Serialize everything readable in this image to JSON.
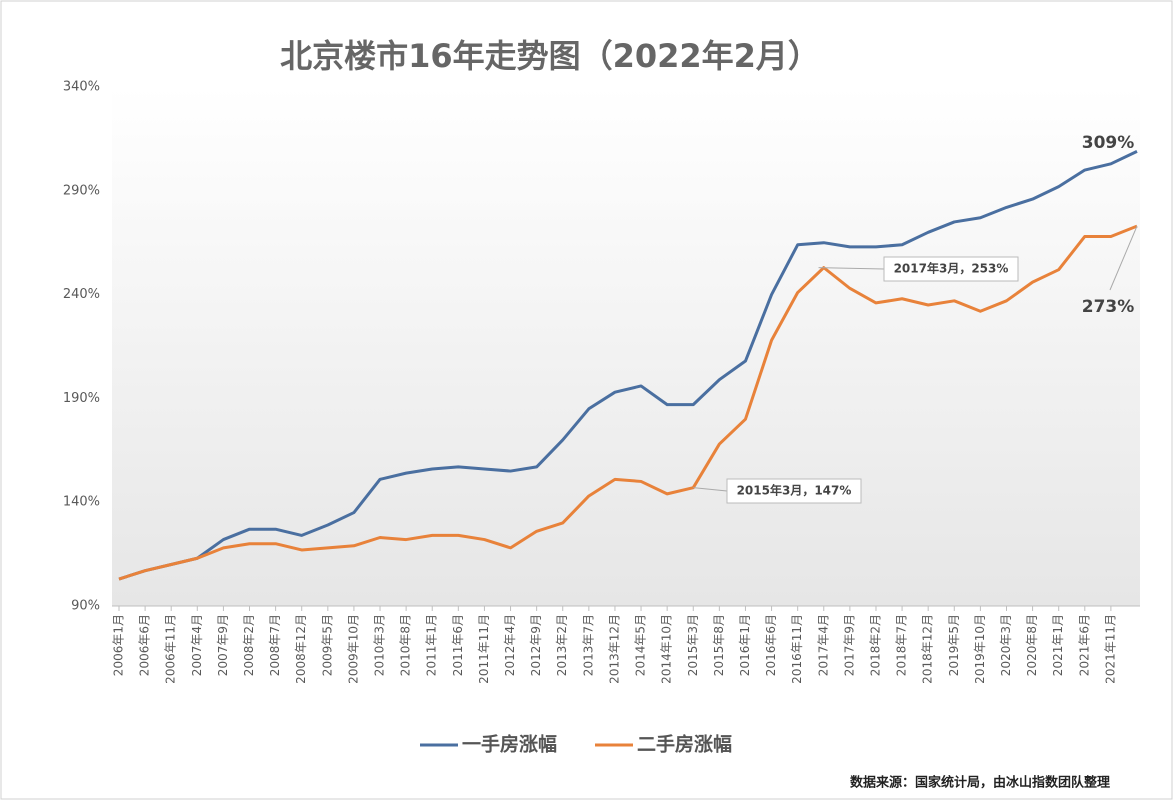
{
  "chart_data": {
    "type": "line",
    "title": "北京楼市16年走势图（2022年2月）",
    "source": "数据来源：国家统计局，由冰山指数团队整理",
    "categories": [
      "2006年1月",
      "2006年6月",
      "2006年11月",
      "2007年4月",
      "2007年9月",
      "2008年2月",
      "2008年7月",
      "2008年12月",
      "2009年5月",
      "2009年10月",
      "2010年3月",
      "2010年8月",
      "2011年1月",
      "2011年6月",
      "2011年11月",
      "2012年4月",
      "2012年9月",
      "2013年2月",
      "2013年7月",
      "2013年12月",
      "2014年5月",
      "2014年10月",
      "2015年3月",
      "2015年8月",
      "2016年1月",
      "2016年6月",
      "2016年11月",
      "2017年4月",
      "2017年9月",
      "2018年2月",
      "2018年7月",
      "2018年12月",
      "2019年5月",
      "2019年10月",
      "2020年3月",
      "2020年8月",
      "2021年1月",
      "2021年6月",
      "2021年11月",
      null
    ],
    "series": [
      {
        "name": "一手房涨幅",
        "color": "#4a6fa0",
        "values": [
          103,
          107,
          110,
          113,
          122,
          127,
          127,
          124,
          129,
          135,
          151,
          154,
          156,
          157,
          156,
          155,
          157,
          170,
          185,
          193,
          196,
          187,
          187,
          199,
          208,
          240,
          264,
          265,
          263,
          263,
          264,
          270,
          275,
          277,
          282,
          286,
          292,
          300,
          303,
          309
        ]
      },
      {
        "name": "二手房涨幅",
        "color": "#e8823a",
        "values": [
          103,
          107,
          110,
          113,
          118,
          120,
          120,
          117,
          118,
          119,
          123,
          122,
          124,
          124,
          122,
          118,
          126,
          130,
          143,
          151,
          150,
          144,
          147,
          168,
          180,
          218,
          241,
          253,
          243,
          236,
          238,
          235,
          237,
          232,
          237,
          246,
          252,
          268,
          268,
          273
        ]
      }
    ],
    "annotations": [
      "309%",
      "273%",
      "2017年3月，253%",
      "2015年3月，147%"
    ],
    "ylim": [
      90,
      340
    ],
    "yticks": [
      {
        "value": 90,
        "label": "90%"
      },
      {
        "value": 140,
        "label": "140%"
      },
      {
        "value": 190,
        "label": "190%"
      },
      {
        "value": 240,
        "label": "240%"
      },
      {
        "value": 290,
        "label": "290%"
      },
      {
        "value": 340,
        "label": "340%"
      }
    ]
  }
}
